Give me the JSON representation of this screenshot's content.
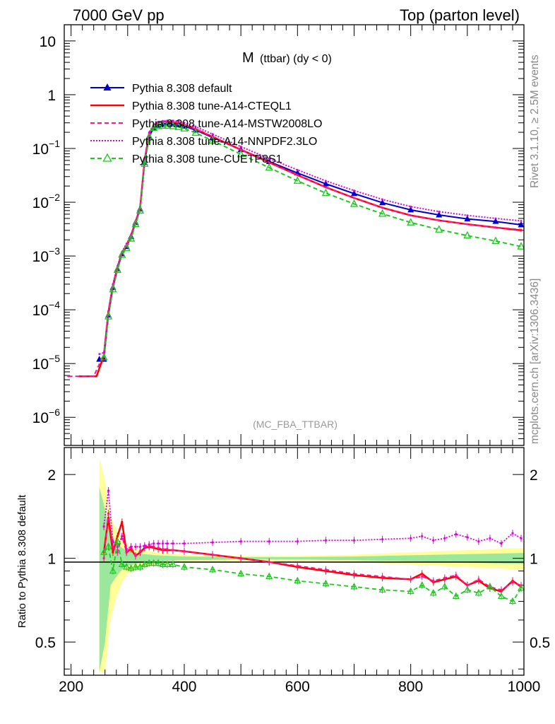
{
  "header": {
    "left": "7000 GeV pp",
    "right": "Top (parton level)"
  },
  "side_labels": {
    "rivet": "Rivet 3.1.10, ≥ 2.5M events",
    "mcplots": "mcplots.cern.ch [arXiv:1306.3436]"
  },
  "colors": {
    "default": "#0000cc",
    "cteql1": "#ff0000",
    "mstw": "#ff1493",
    "nnpdf": "#e000e0",
    "cuetp": "#1ec81e",
    "band_yellow": "#ffff99",
    "band_green": "#9be79b"
  },
  "chart_data": [
    {
      "type": "line",
      "title": "M (ttbar) (dy < 0)",
      "title_main": "M",
      "title_sub": "(ttbar) (dy < 0)",
      "watermark": "(MC_FBA_TTBAR)",
      "xlabel": "",
      "ylabel": "",
      "xlim": [
        188,
        1000
      ],
      "ylim": [
        3e-07,
        20
      ],
      "yscale": "log",
      "ytick_labels": [
        {
          "v": 10,
          "m": "10",
          "e": ""
        },
        {
          "v": 1,
          "m": "1",
          "e": ""
        },
        {
          "v": 0.1,
          "m": "10",
          "e": "−1"
        },
        {
          "v": 0.01,
          "m": "10",
          "e": "−2"
        },
        {
          "v": 0.001,
          "m": "10",
          "e": "−3"
        },
        {
          "v": 0.0001,
          "m": "10",
          "e": "−4"
        },
        {
          "v": 1e-05,
          "m": "10",
          "e": "−5"
        },
        {
          "v": 1e-06,
          "m": "10",
          "e": "−6"
        }
      ],
      "legend_position": "top-left",
      "series": [
        {
          "name": "Pythia 8.308 default",
          "key": "default",
          "marker": "triangle-filled",
          "style": "solid",
          "x": [
            250,
            258,
            266,
            274,
            282,
            290,
            298,
            306,
            314,
            322,
            330,
            338,
            346,
            354,
            362,
            370,
            380,
            390,
            400,
            420,
            450,
            500,
            550,
            600,
            650,
            700,
            750,
            800,
            850,
            900,
            950,
            995
          ],
          "y": [
            1.2e-05,
            1.2e-05,
            8e-05,
            0.00026,
            0.00058,
            0.0011,
            0.0015,
            0.0023,
            0.0042,
            0.0075,
            0.055,
            0.17,
            0.24,
            0.27,
            0.285,
            0.29,
            0.29,
            0.28,
            0.26,
            0.22,
            0.16,
            0.095,
            0.057,
            0.035,
            0.022,
            0.0145,
            0.0098,
            0.0072,
            0.0058,
            0.0049,
            0.0044,
            0.0038
          ]
        },
        {
          "name": "Pythia 8.308 tune-A14-CTEQL1",
          "key": "cteql1",
          "marker": "none",
          "style": "solid",
          "x": [
            215,
            245,
            258,
            266,
            274,
            282,
            290,
            298,
            306,
            314,
            322,
            330,
            338,
            346,
            354,
            362,
            370,
            380,
            390,
            400,
            420,
            450,
            500,
            550,
            600,
            650,
            700,
            750,
            800,
            850,
            900,
            950,
            995
          ],
          "y": [
            5.8e-06,
            5.8e-06,
            1.4e-05,
            9e-05,
            0.00028,
            0.00062,
            0.00115,
            0.0016,
            0.0024,
            0.0043,
            0.0078,
            0.06,
            0.19,
            0.27,
            0.305,
            0.315,
            0.315,
            0.31,
            0.295,
            0.275,
            0.23,
            0.165,
            0.095,
            0.055,
            0.032,
            0.019,
            0.012,
            0.0079,
            0.0057,
            0.0046,
            0.0039,
            0.0034,
            0.003
          ]
        },
        {
          "name": "Pythia 8.308 tune-A14-MSTW2008LO",
          "key": "mstw",
          "marker": "none",
          "style": "dashed",
          "x": [
            195,
            240,
            258,
            266,
            274,
            282,
            290,
            298,
            306,
            314,
            322,
            330,
            338,
            346,
            354,
            362,
            370,
            380,
            390,
            400,
            420,
            450,
            500,
            550,
            600,
            650,
            700,
            750,
            800,
            850,
            900,
            950,
            995
          ],
          "y": [
            5.8e-06,
            5.8e-06,
            1.5e-05,
            9.2e-05,
            0.00029,
            0.00063,
            0.00118,
            0.0016,
            0.0024,
            0.0044,
            0.008,
            0.061,
            0.19,
            0.27,
            0.305,
            0.315,
            0.315,
            0.31,
            0.295,
            0.275,
            0.23,
            0.165,
            0.095,
            0.055,
            0.032,
            0.019,
            0.012,
            0.0079,
            0.0057,
            0.0046,
            0.0039,
            0.0034,
            0.0031
          ]
        },
        {
          "name": "Pythia 8.308 tune-A14-NNPDF2.3LO",
          "key": "nnpdf",
          "marker": "none",
          "style": "dotted",
          "x": [
            250,
            258,
            266,
            274,
            282,
            290,
            298,
            306,
            314,
            322,
            330,
            338,
            346,
            354,
            362,
            370,
            380,
            390,
            400,
            420,
            450,
            500,
            550,
            600,
            650,
            700,
            750,
            800,
            850,
            900,
            950,
            995
          ],
          "y": [
            1.5e-05,
            1.6e-05,
            9.5e-05,
            0.0003,
            0.00065,
            0.0012,
            0.0017,
            0.0025,
            0.0045,
            0.0082,
            0.063,
            0.2,
            0.28,
            0.315,
            0.325,
            0.33,
            0.33,
            0.32,
            0.3,
            0.255,
            0.185,
            0.108,
            0.065,
            0.04,
            0.025,
            0.0165,
            0.0113,
            0.0083,
            0.0067,
            0.0057,
            0.005,
            0.0045
          ]
        },
        {
          "name": "Pythia 8.308 tune-CUETP8S1",
          "key": "cuetp",
          "marker": "triangle-open",
          "style": "dashed",
          "x": [
            258,
            266,
            274,
            282,
            290,
            298,
            306,
            314,
            322,
            330,
            338,
            346,
            354,
            362,
            370,
            380,
            390,
            400,
            420,
            450,
            500,
            550,
            600,
            650,
            700,
            750,
            800,
            850,
            900,
            950,
            995
          ],
          "y": [
            1.3e-05,
            7.5e-05,
            0.00024,
            0.00055,
            0.00105,
            0.0014,
            0.0021,
            0.0039,
            0.007,
            0.052,
            0.16,
            0.24,
            0.26,
            0.265,
            0.265,
            0.26,
            0.25,
            0.235,
            0.195,
            0.14,
            0.078,
            0.044,
            0.025,
            0.0148,
            0.0093,
            0.0061,
            0.0042,
            0.0031,
            0.0024,
            0.0019,
            0.0015
          ]
        }
      ]
    },
    {
      "type": "line",
      "title": "",
      "xlabel": "",
      "ylabel": "Ratio to Pythia 8.308 default",
      "xlim": [
        188,
        1000
      ],
      "ylim": [
        0.38,
        2.5
      ],
      "yscale": "log",
      "xtick_labels": [
        200,
        400,
        600,
        800,
        1000
      ],
      "ytick_labels_left": [
        2,
        1,
        0.5
      ],
      "ytick_labels_right": [
        2,
        1,
        0.5
      ],
      "reference_line": 1,
      "band": {
        "x": [
          250,
          260,
          270,
          280,
          290,
          300,
          320,
          350,
          400,
          500,
          600,
          700,
          800,
          900,
          1000
        ],
        "yellow_half_width": [
          1.3,
          0.9,
          0.4,
          0.28,
          0.18,
          0.12,
          0.08,
          0.05,
          0.03,
          0.02,
          0.02,
          0.03,
          0.05,
          0.07,
          0.09
        ],
        "green_half_width": [
          0.8,
          0.5,
          0.2,
          0.14,
          0.09,
          0.06,
          0.04,
          0.025,
          0.015,
          0.01,
          0.01,
          0.015,
          0.025,
          0.035,
          0.045
        ]
      },
      "series": [
        {
          "name": "Pythia 8.308 tune-A14-CTEQL1",
          "key": "cteql1",
          "style": "solid",
          "x": [
            258,
            266,
            274,
            282,
            290,
            298,
            306,
            314,
            322,
            330,
            338,
            346,
            354,
            362,
            370,
            380,
            400,
            450,
            500,
            550,
            600,
            650,
            700,
            750,
            800,
            820,
            840,
            860,
            880,
            900,
            920,
            940,
            960,
            980,
            995
          ],
          "y": [
            1.05,
            1.4,
            1.05,
            1.2,
            1.35,
            1.05,
            1.08,
            1.02,
            1.05,
            1.09,
            1.1,
            1.09,
            1.08,
            1.07,
            1.07,
            1.07,
            1.06,
            1.03,
            1.0,
            0.97,
            0.93,
            0.9,
            0.87,
            0.85,
            0.84,
            0.88,
            0.82,
            0.84,
            0.86,
            0.8,
            0.83,
            0.78,
            0.76,
            0.83,
            0.79
          ]
        },
        {
          "name": "Pythia 8.308 tune-A14-MSTW2008LO",
          "key": "mstw",
          "style": "dashed",
          "x": [
            258,
            266,
            274,
            282,
            290,
            298,
            306,
            314,
            322,
            330,
            338,
            346,
            354,
            362,
            370,
            380,
            400,
            450,
            500,
            550,
            600,
            650,
            700,
            750,
            800,
            820,
            840,
            860,
            880,
            900,
            920,
            940,
            960,
            980,
            995
          ],
          "y": [
            1.0,
            1.45,
            1.1,
            1.05,
            1.2,
            1.05,
            1.1,
            1.02,
            1.06,
            1.1,
            1.11,
            1.1,
            1.09,
            1.08,
            1.08,
            1.07,
            1.06,
            1.03,
            1.0,
            0.97,
            0.94,
            0.91,
            0.88,
            0.86,
            0.84,
            0.86,
            0.83,
            0.85,
            0.87,
            0.8,
            0.84,
            0.79,
            0.77,
            0.82,
            0.8
          ]
        },
        {
          "name": "Pythia 8.308 tune-A14-NNPDF2.3LO",
          "key": "nnpdf",
          "style": "dotted",
          "x": [
            258,
            266,
            274,
            282,
            290,
            298,
            306,
            314,
            322,
            330,
            338,
            346,
            354,
            362,
            370,
            380,
            400,
            450,
            500,
            550,
            600,
            650,
            700,
            750,
            800,
            820,
            840,
            860,
            880,
            900,
            920,
            940,
            960,
            980,
            995
          ],
          "y": [
            1.3,
            1.75,
            1.15,
            1.1,
            1.2,
            1.08,
            1.1,
            1.1,
            1.1,
            1.11,
            1.12,
            1.13,
            1.13,
            1.13,
            1.13,
            1.13,
            1.13,
            1.14,
            1.15,
            1.15,
            1.15,
            1.16,
            1.16,
            1.17,
            1.18,
            1.2,
            1.16,
            1.18,
            1.22,
            1.19,
            1.15,
            1.18,
            1.13,
            1.23,
            1.18
          ]
        },
        {
          "name": "Pythia 8.308 tune-CUETP8S1",
          "key": "cuetp",
          "style": "dashed",
          "x": [
            258,
            266,
            274,
            282,
            290,
            298,
            306,
            314,
            322,
            330,
            338,
            346,
            354,
            362,
            370,
            380,
            400,
            450,
            500,
            550,
            600,
            650,
            700,
            750,
            800,
            820,
            840,
            860,
            880,
            900,
            920,
            940,
            960,
            980,
            995
          ],
          "y": [
            1.05,
            1.1,
            0.9,
            1.15,
            0.95,
            0.93,
            0.92,
            0.93,
            0.93,
            0.95,
            0.96,
            0.96,
            0.96,
            0.95,
            0.95,
            0.95,
            0.93,
            0.91,
            0.88,
            0.86,
            0.83,
            0.81,
            0.79,
            0.77,
            0.76,
            0.8,
            0.75,
            0.79,
            0.73,
            0.77,
            0.75,
            0.79,
            0.73,
            0.7,
            0.78
          ]
        }
      ]
    }
  ]
}
